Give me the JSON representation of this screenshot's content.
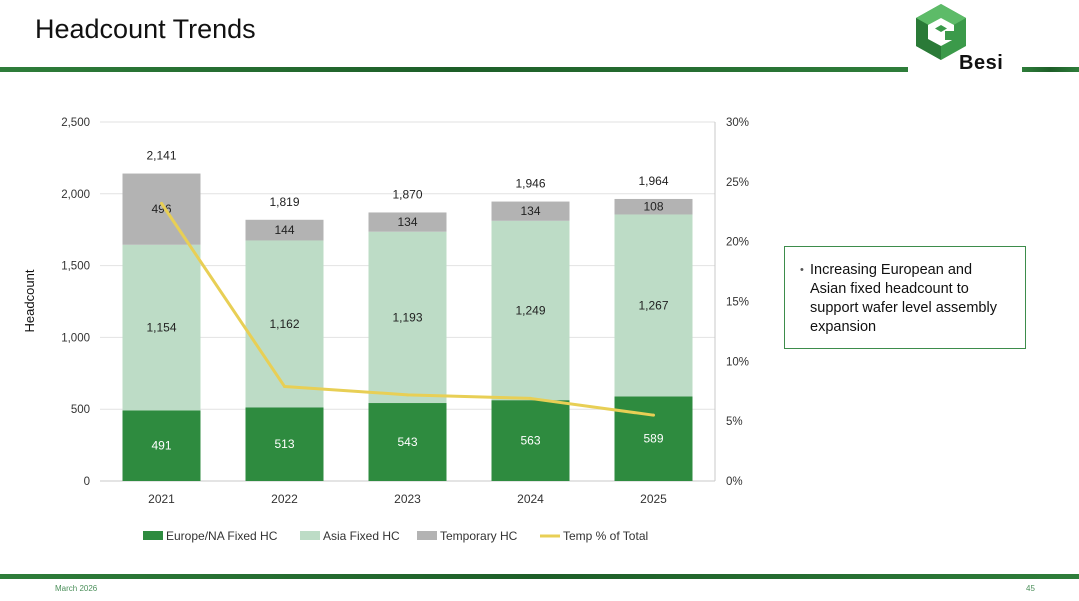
{
  "slide": {
    "title": "Headcount Trends",
    "footer_date": "March 2026",
    "page_number": "45",
    "logo_text": "Besi"
  },
  "callout": {
    "bullets": [
      "Increasing European and Asian fixed headcount to support wafer level assembly expansion"
    ]
  },
  "colors": {
    "europe": "#2e8b3f",
    "asia": "#bddcc6",
    "temp": "#b3b3b3",
    "line": "#e8cf55",
    "brand": "#2e7d3a"
  },
  "chart_data": {
    "type": "bar",
    "stacked": true,
    "categories": [
      "2021",
      "2022",
      "2023",
      "2024",
      "2025"
    ],
    "series": [
      {
        "name": "Europe/NA Fixed HC",
        "values": [
          491,
          513,
          543,
          563,
          589
        ],
        "labels": [
          "491",
          "513",
          "543",
          "563",
          "589"
        ]
      },
      {
        "name": "Asia Fixed HC",
        "values": [
          1154,
          1162,
          1193,
          1249,
          1267
        ],
        "labels": [
          "1,154",
          "1,162",
          "1,193",
          "1,249",
          "1,267"
        ]
      },
      {
        "name": "Temporary HC",
        "values": [
          496,
          144,
          134,
          134,
          108
        ],
        "labels": [
          "496",
          "144",
          "134",
          "134",
          "108"
        ]
      }
    ],
    "totals": [
      "2,141",
      "1,819",
      "1,870",
      "1,946",
      "1,964"
    ],
    "line_series": {
      "name": "Temp % of Total",
      "values": [
        23.2,
        7.9,
        7.2,
        6.9,
        5.5
      ],
      "axis": "right"
    },
    "ylabel": "Headcount",
    "ylim": [
      0,
      2500
    ],
    "y_ticks": [
      "0",
      "500",
      "1,000",
      "1,500",
      "2,000",
      "2,500"
    ],
    "y2lim": [
      0,
      30
    ],
    "y2_ticks": [
      "0%",
      "5%",
      "10%",
      "15%",
      "20%",
      "25%",
      "30%"
    ],
    "legend_position": "bottom",
    "grid": true
  }
}
